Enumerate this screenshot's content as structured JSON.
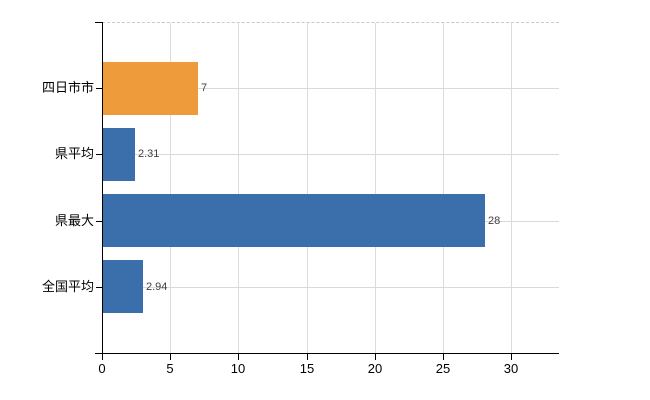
{
  "chart_data": {
    "type": "bar",
    "orientation": "horizontal",
    "title": "",
    "xlabel": "",
    "ylabel": "",
    "categories": [
      "四日市市",
      "県平均",
      "県最大",
      "全国平均"
    ],
    "values": [
      7,
      2.31,
      28,
      2.94
    ],
    "value_labels": [
      "7",
      "2.31",
      "28",
      "2.94"
    ],
    "bar_colors": [
      "#EE9B3C",
      "#3B6FAC",
      "#3B6FAC",
      "#3B6FAC"
    ],
    "x_ticks": [
      0,
      5,
      10,
      15,
      20,
      25,
      30
    ],
    "x_tick_labels": [
      "0",
      "5",
      "10",
      "15",
      "20",
      "25",
      "30"
    ],
    "xlim": [
      0,
      33.5
    ],
    "grid": true,
    "legend": false
  },
  "colors": {
    "accent_orange": "#EE9B3C",
    "accent_blue": "#3B6FAC",
    "gridline": "#D9D9D9",
    "axis": "#000000",
    "value_text": "#404040",
    "background": "#FFFFFF"
  }
}
